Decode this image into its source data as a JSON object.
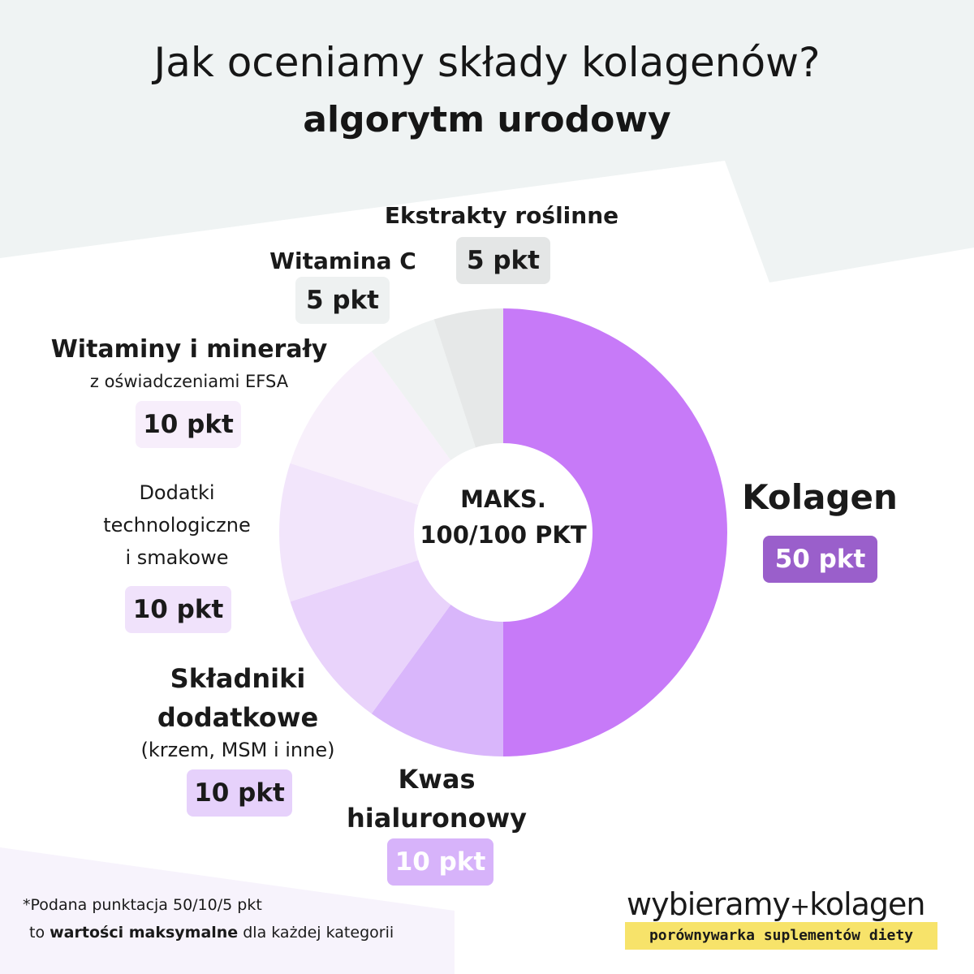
{
  "header": {
    "title": "Jak oceniamy składy kolagenów?",
    "subtitle": "algorytm urodowy"
  },
  "center_label": {
    "line1": "MAKS.",
    "line2": "100/100 PKT"
  },
  "chart_data": {
    "type": "pie",
    "title": "Jak oceniamy składy kolagenów?",
    "subtitle": "algorytm urodowy",
    "total": 100,
    "slices": [
      {
        "name": "Kolagen",
        "value": 50,
        "label": "50 pkt",
        "color": "#c77af8"
      },
      {
        "name": "Kwas hialuronowy",
        "value": 10,
        "label": "10 pkt",
        "color": "#d9b6fb"
      },
      {
        "name": "Składniki dodatkowe (krzem, MSM i inne)",
        "value": 10,
        "label": "10 pkt",
        "color": "#e9d3fb"
      },
      {
        "name": "Dodatki technologiczne i smakowe",
        "value": 10,
        "label": "10 pkt",
        "color": "#f2e5fb"
      },
      {
        "name": "Witaminy i minerały z oświadczeniami EFSA",
        "value": 10,
        "label": "10 pkt",
        "color": "#f8f0fb"
      },
      {
        "name": "Witamina C",
        "value": 5,
        "label": "5 pkt",
        "color": "#eff2f2"
      },
      {
        "name": "Ekstrakty roślinne",
        "value": 5,
        "label": "5 pkt",
        "color": "#e6e8e8"
      }
    ]
  },
  "labels": {
    "kolagen": {
      "name": "Kolagen",
      "pts": "50 pkt",
      "pill_color": "#9a5fcb"
    },
    "kwas": {
      "line1": "Kwas",
      "line2": "hialuronowy",
      "pts": "10 pkt",
      "pill_color": "#d7b3fa"
    },
    "skladniki": {
      "line1": "Składniki",
      "line2": "dodatkowe",
      "line3": "(krzem, MSM i inne)",
      "pts": "10 pkt",
      "pill_color": "#e6d1fb"
    },
    "dodatki": {
      "line1": "Dodatki",
      "line2": "technologiczne",
      "line3": "i smakowe",
      "pts": "10 pkt",
      "pill_color": "#f0e2fb"
    },
    "witaminy": {
      "line1": "Witaminy i minerały",
      "line2": "z oświadczeniami EFSA",
      "pts": "10 pkt",
      "pill_color": "#f7eefb"
    },
    "witaminac": {
      "name": "Witamina C",
      "pts": "5 pkt",
      "pill_color": "#eef1f1"
    },
    "ekstrakty": {
      "name": "Ekstrakty roślinne",
      "pts": "5 pkt",
      "pill_color": "#e4e6e6"
    }
  },
  "footnote": {
    "line1": "*Podana punktacja 50/10/5 pkt",
    "line2_pre": "to ",
    "line2_bold": "wartości maksymalne",
    "line2_post": " dla każdej kategorii"
  },
  "brand": {
    "name_left": "wybieramy",
    "name_plus": "+",
    "name_right": "kolagen",
    "tagline": "porównywarka suplementów diety"
  },
  "colors": {
    "top_background": "#eff3f3",
    "bottom_background": "#f7f3fc",
    "kolagen_pill_text": "#ffffff"
  }
}
